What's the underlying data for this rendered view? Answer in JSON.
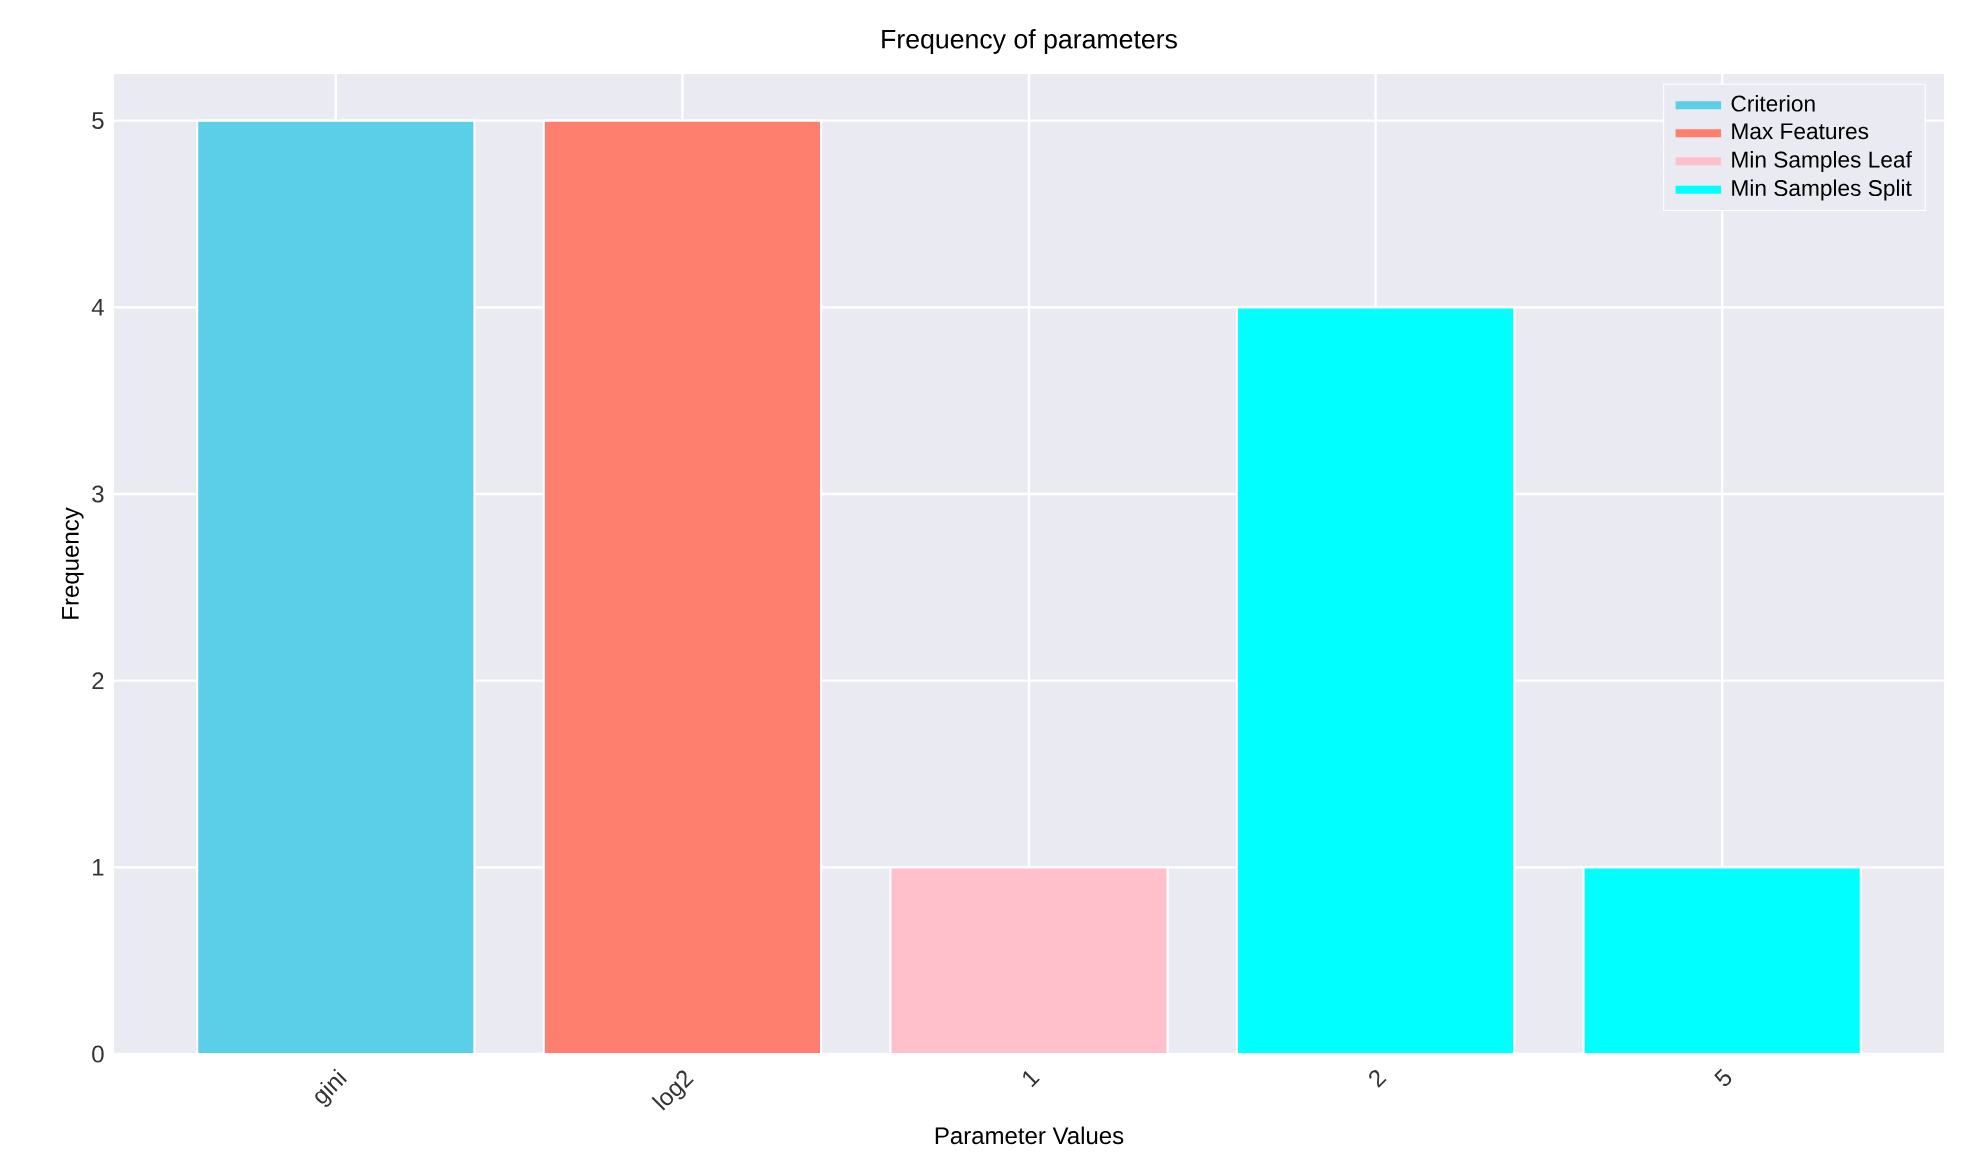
{
  "chart_data": {
    "type": "bar",
    "title": "Frequency of parameters",
    "xlabel": "Parameter Values",
    "ylabel": "Frequency",
    "categories": [
      "gini",
      "log2",
      "1",
      "2",
      "5"
    ],
    "series": [
      {
        "name": "Criterion",
        "color": "#5bcfe8",
        "values": [
          5,
          null,
          null,
          null,
          null
        ]
      },
      {
        "name": "Max Features",
        "color": "#ff7f6e",
        "values": [
          null,
          5,
          null,
          null,
          null
        ]
      },
      {
        "name": "Min Samples Leaf",
        "color": "#ffc0cb",
        "values": [
          null,
          null,
          1,
          null,
          null
        ]
      },
      {
        "name": "Min Samples Split",
        "color": "#00ffff",
        "values": [
          null,
          null,
          null,
          4,
          1
        ]
      }
    ],
    "ylim": [
      0,
      5.25
    ],
    "yticks": [
      0,
      1,
      2,
      3,
      4,
      5
    ],
    "grid": true,
    "legend": "top right"
  }
}
